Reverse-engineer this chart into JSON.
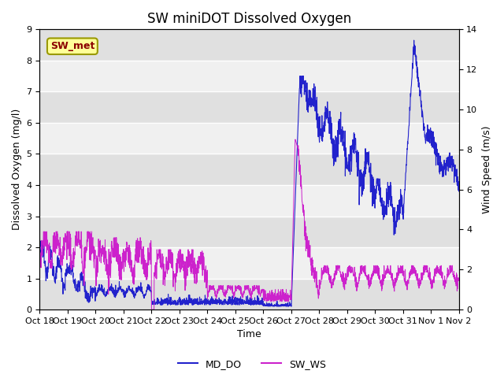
{
  "title": "SW miniDOT Dissolved Oxygen",
  "ylabel_left": "Dissolved Oxygen (mg/l)",
  "ylabel_right": "Wind Speed (m/s)",
  "xlabel": "Time",
  "ylim_left": [
    0.0,
    9.0
  ],
  "ylim_right": [
    0,
    14
  ],
  "yticks_left": [
    0.0,
    1.0,
    2.0,
    3.0,
    4.0,
    5.0,
    6.0,
    7.0,
    8.0,
    9.0
  ],
  "yticks_right": [
    0,
    2,
    4,
    6,
    8,
    10,
    12,
    14
  ],
  "bg_light": "#f0f0f0",
  "bg_dark": "#e0e0e0",
  "line_color_do": "#2222cc",
  "line_color_ws": "#cc22cc",
  "legend_label_do": "MD_DO",
  "legend_label_ws": "SW_WS",
  "annotation_text": "SW_met",
  "annotation_color": "#8b0000",
  "annotation_bg": "#ffff99",
  "annotation_edge": "#999900",
  "x_tick_labels": [
    "Oct 18",
    "Oct 19",
    "Oct 20",
    "Oct 21",
    "Oct 22",
    "Oct 23",
    "Oct 24",
    "Oct 25",
    "Oct 26",
    "Oct 27",
    "Oct 28",
    "Oct 29",
    "Oct 30",
    "Oct 31",
    "Nov 1",
    "Nov 2"
  ],
  "title_fontsize": 12,
  "label_fontsize": 9,
  "tick_fontsize": 8,
  "legend_fontsize": 9,
  "n_days": 15,
  "n_points": 2160
}
